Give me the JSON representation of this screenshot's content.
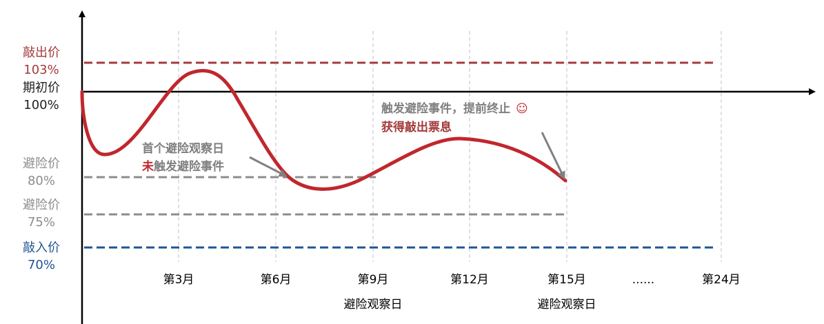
{
  "levels": {
    "knockout": {
      "name": "敲出价",
      "pct": "103%",
      "color": "#a33a3a"
    },
    "initial": {
      "name": "期初价",
      "pct": "100%",
      "color": "#222222"
    },
    "protect80": {
      "name": "避险价",
      "pct": "80%",
      "color": "#8c8c8c"
    },
    "protect75": {
      "name": "避险价",
      "pct": "75%",
      "color": "#8c8c8c"
    },
    "knockin": {
      "name": "敲入价",
      "pct": "70%",
      "color": "#1f5592"
    }
  },
  "months": [
    "第3月",
    "第6月",
    "第9月",
    "第12月",
    "第15月",
    "......",
    "第24月"
  ],
  "observation_labels": [
    "避险观察日",
    "避险观察日"
  ],
  "annotations": {
    "first": {
      "line1": "首个避险观察日",
      "prefix": "未",
      "rest": "触发避险事件"
    },
    "second": {
      "line1": "触发避险事件，提前终止",
      "smiley": "☺",
      "line2": "获得敲出票息"
    }
  },
  "colors": {
    "curve": "#c0272d",
    "axis": "#000000",
    "grid": "#c8cad6",
    "annotation": "#7f7f7f"
  }
}
